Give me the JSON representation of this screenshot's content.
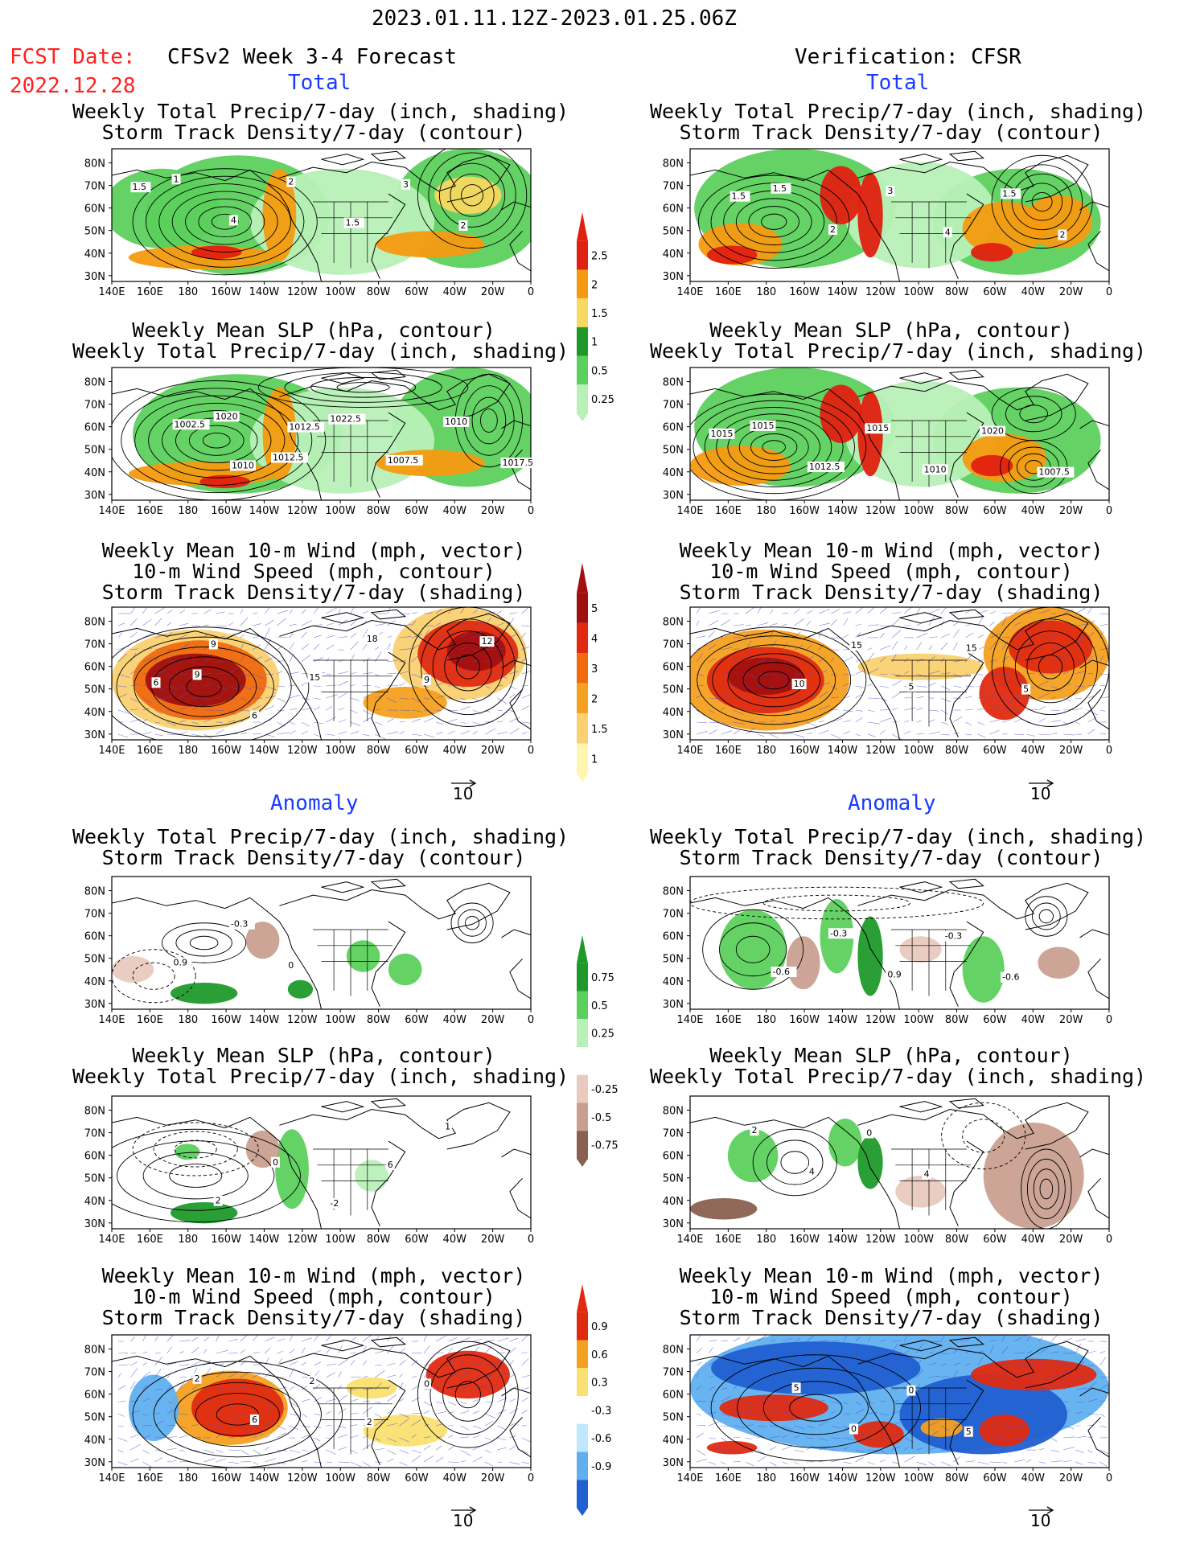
{
  "header": {
    "date_range": "2023.01.11.12Z-2023.01.25.06Z",
    "fcst_label": "FCST Date:",
    "fcst_date": "2022.12.28",
    "left_title": "CFSv2 Week 3-4 Forecast",
    "right_title": "Verification: CFSR"
  },
  "sections": {
    "total": "Total",
    "anomaly": "Anomaly"
  },
  "axes": {
    "lat_labels": [
      "80N",
      "70N",
      "60N",
      "50N",
      "40N",
      "30N"
    ],
    "lon_labels": [
      "140E",
      "160E",
      "180",
      "160W",
      "140W",
      "120W",
      "100W",
      "80W",
      "60W",
      "40W",
      "20W",
      "0"
    ]
  },
  "panel_titles": {
    "precip_storm": [
      "Weekly Total Precip/7-day (inch, shading)",
      "Storm Track Density/7-day (contour)"
    ],
    "slp_precip": [
      "Weekly Mean SLP (hPa, contour)",
      "Weekly Total Precip/7-day (inch, shading)"
    ],
    "wind_storm": [
      "Weekly Mean 10-m Wind (mph, vector)",
      "10-m Wind Speed (mph, contour)",
      "Storm Track Density/7-day (shading)"
    ]
  },
  "vector_ref": "10",
  "colorbars": [
    {
      "labels": [
        "2.5",
        "2",
        "1.5",
        "1",
        "0.5",
        "0.25"
      ],
      "colors": [
        "#e02010",
        "#f59a10",
        "#f7d860",
        "#1f9a2a",
        "#5cd05c",
        "#b8f0b8"
      ]
    },
    {
      "labels": [
        "5",
        "4",
        "3",
        "2",
        "1.5",
        "1"
      ],
      "colors": [
        "#a01010",
        "#e02a10",
        "#f06a10",
        "#f5a020",
        "#fad070",
        "#fff4b0"
      ]
    },
    {
      "labels": [
        "0.75",
        "0.5",
        "0.25",
        "-0.25",
        "-0.5",
        "-0.75"
      ],
      "colors": [
        "#1f9a2a",
        "#5cd05c",
        "#b8f0b8",
        "#ffffff",
        "#e8cabf",
        "#c9a090",
        "#8a6050"
      ]
    },
    {
      "labels": [
        "0.9",
        "0.6",
        "0.3",
        "-0.3",
        "-0.6",
        "-0.9"
      ],
      "colors": [
        "#e02a10",
        "#f5a020",
        "#fae070",
        "#ffffff",
        "#bfe8ff",
        "#60b0f0",
        "#2060d0"
      ]
    }
  ],
  "contour_labels": {
    "p1": [
      "1",
      "4",
      "2",
      "1.5",
      "3",
      "2",
      "1.5"
    ],
    "p2": [
      "1.5",
      "2",
      "3",
      "4",
      "1.5",
      "2",
      "1.5"
    ],
    "p3": [
      "1020",
      "1012.5",
      "1022.5",
      "1007.5",
      "1010",
      "1017.5",
      "1002.5",
      "1010",
      "1012.5"
    ],
    "p4": [
      "1015",
      "1012.5",
      "1015",
      "1010",
      "1020",
      "1007.5",
      "1015"
    ],
    "p5": [
      "9",
      "6",
      "15",
      "18",
      "9",
      "12",
      "6",
      "9"
    ],
    "p6": [
      "10",
      "15",
      "5",
      "15",
      "5"
    ],
    "p7": [
      "0.9",
      "-0.3",
      "0"
    ],
    "p8": [
      "-0.6",
      "-0.3",
      "0.9",
      "-0.3",
      "-0.6"
    ],
    "p9": [
      "2",
      "0",
      "-2",
      "6",
      "1"
    ],
    "p10": [
      "2",
      "4",
      "0",
      "4"
    ],
    "p11": [
      "2",
      "6",
      "2",
      "2",
      "0"
    ],
    "p12": [
      "5",
      "0",
      "0",
      "5"
    ]
  }
}
